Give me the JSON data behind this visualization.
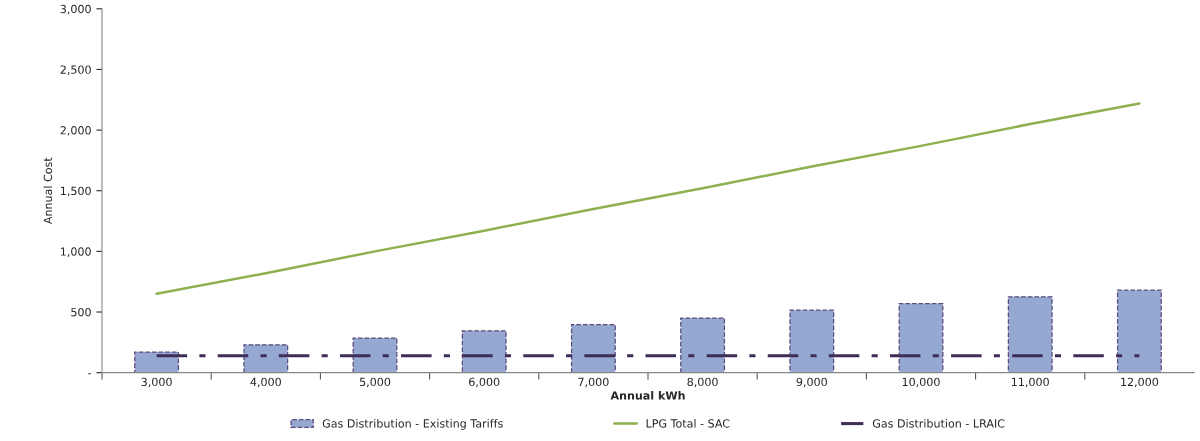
{
  "chart_data": {
    "type": "bar",
    "xlabel": "Annual kWh",
    "ylabel": "Annual Cost",
    "categories": [
      "3,000",
      "4,000",
      "5,000",
      "6,000",
      "7,000",
      "8,000",
      "9,000",
      "10,000",
      "11,000",
      "12,000"
    ],
    "series": [
      {
        "name": "Gas Distribution - Existing Tariffs",
        "color": "#95a8d2",
        "values": [
          170,
          230,
          285,
          345,
          395,
          450,
          515,
          570,
          625,
          680
        ]
      },
      {
        "name": "LPG Total - SAC",
        "type": "line",
        "color": "#8db050",
        "line_style": "solid",
        "values": [
          650,
          820,
          1000,
          1170,
          1350,
          1520,
          1700,
          1870,
          2050,
          2220
        ]
      },
      {
        "name": "Gas Distribution - LRAIC",
        "type": "line",
        "color": "#3f2d57",
        "line_style": "dashdot",
        "values": [
          140,
          140,
          140,
          140,
          140,
          140,
          140,
          140,
          140,
          140
        ]
      }
    ],
    "ylim": [
      0,
      3000
    ],
    "yticks": [
      {
        "value": 0,
        "label": "-"
      },
      {
        "value": 500,
        "label": "500"
      },
      {
        "value": 1000,
        "label": "1,000"
      },
      {
        "value": 1500,
        "label": "1,500"
      },
      {
        "value": 2000,
        "label": "2,000"
      },
      {
        "value": 2500,
        "label": "2,500"
      },
      {
        "value": 3000,
        "label": "3,000"
      }
    ],
    "grid": false,
    "legend": "bottom"
  }
}
